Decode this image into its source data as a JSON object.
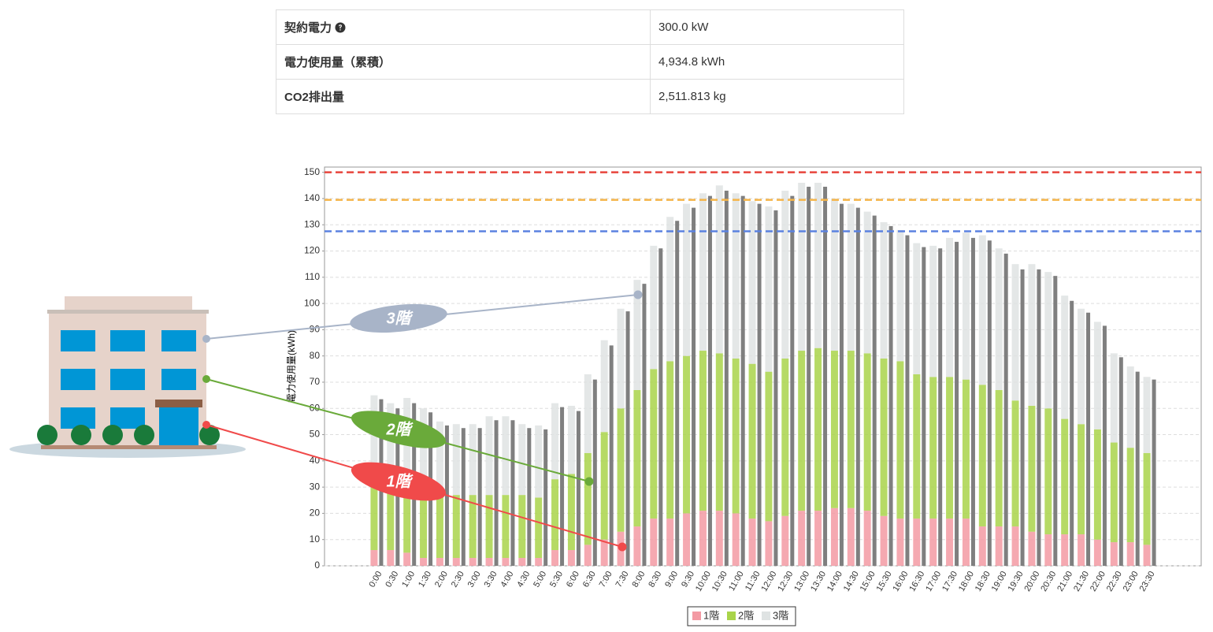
{
  "table": {
    "rows": [
      [
        "契約電力",
        "300.0 kW"
      ],
      [
        "電力使用量（累積）",
        "4,934.8 kWh"
      ],
      [
        "CO2排出量",
        "2,511.813 kg"
      ]
    ]
  },
  "callouts": [
    "3階",
    "2階",
    "1階"
  ],
  "chart_data": {
    "type": "bar",
    "stacked": true,
    "y_label": "電力使用量(kWh)",
    "categories": [
      "0:00",
      "0:30",
      "1:00",
      "1:30",
      "2:00",
      "2:30",
      "3:00",
      "3:30",
      "4:00",
      "4:30",
      "5:00",
      "5:30",
      "6:00",
      "6:30",
      "7:00",
      "7:30",
      "8:00",
      "8:30",
      "9:00",
      "9:30",
      "10:00",
      "10:30",
      "11:00",
      "11:30",
      "12:00",
      "12:30",
      "13:00",
      "13:30",
      "14:00",
      "14:30",
      "15:00",
      "15:30",
      "16:00",
      "16:30",
      "17:00",
      "17:30",
      "18:00",
      "18:30",
      "19:00",
      "19:30",
      "20:00",
      "20:30",
      "21:00",
      "21:30",
      "22:00",
      "22:30",
      "23:00",
      "23:30"
    ],
    "series": [
      {
        "name": "1階",
        "color": "#f39aa3",
        "values": [
          6,
          6,
          5,
          3,
          3,
          3,
          3,
          3,
          3,
          3,
          3,
          6,
          6,
          8,
          10,
          13,
          15,
          18,
          18,
          20,
          21,
          21,
          20,
          18,
          17,
          19,
          21,
          21,
          22,
          22,
          21,
          19,
          18,
          18,
          18,
          18,
          18,
          15,
          15,
          15,
          13,
          12,
          12,
          12,
          10,
          9,
          9,
          8
        ]
      },
      {
        "name": "2階",
        "color": "#a9d44a",
        "values": [
          26,
          25,
          25,
          25,
          24,
          24,
          24,
          24,
          24,
          24,
          23,
          27,
          29,
          35,
          41,
          47,
          52,
          57,
          60,
          60,
          61,
          60,
          59,
          59,
          57,
          60,
          61,
          62,
          60,
          60,
          60,
          60,
          60,
          55,
          54,
          54,
          53,
          54,
          52,
          48,
          48,
          48,
          44,
          42,
          42,
          38,
          36,
          35
        ]
      },
      {
        "name": "3階",
        "color": "#dfe3e3",
        "values": [
          33,
          31,
          34,
          32,
          28,
          27,
          27,
          30,
          30,
          27,
          27.5,
          29,
          26,
          30,
          35,
          38,
          42,
          47,
          55,
          58,
          60,
          64,
          63,
          62,
          63,
          64,
          64,
          63,
          58,
          56,
          54,
          52,
          50,
          50,
          50,
          53,
          56,
          57,
          54,
          52,
          54,
          52,
          47,
          44,
          41,
          34,
          31,
          29
        ]
      }
    ],
    "comparison": {
      "color": "#7f7f7f",
      "values": [
        63.5,
        60,
        62,
        58.5,
        53.5,
        52.5,
        52.5,
        55.5,
        55.5,
        52.5,
        52,
        60.5,
        59,
        71,
        84,
        97,
        107.5,
        121,
        131.5,
        136.5,
        141,
        143,
        141,
        138,
        135.5,
        141,
        144.5,
        144.5,
        138,
        136.5,
        133.5,
        129.5,
        126,
        121.5,
        121,
        123.5,
        125,
        124,
        119,
        113,
        113,
        110.5,
        101,
        96.5,
        91.5,
        79.5,
        74,
        71
      ]
    },
    "reference_lines": [
      {
        "value": 150,
        "color": "#e8453c"
      },
      {
        "value": 139.5,
        "color": "#f5b54a"
      },
      {
        "value": 127.5,
        "color": "#5b82e0"
      }
    ],
    "ylim": [
      0,
      152
    ],
    "yticks": [
      0,
      10,
      20,
      30,
      40,
      50,
      60,
      70,
      80,
      90,
      100,
      110,
      120,
      130,
      140,
      150
    ],
    "grid": true
  }
}
